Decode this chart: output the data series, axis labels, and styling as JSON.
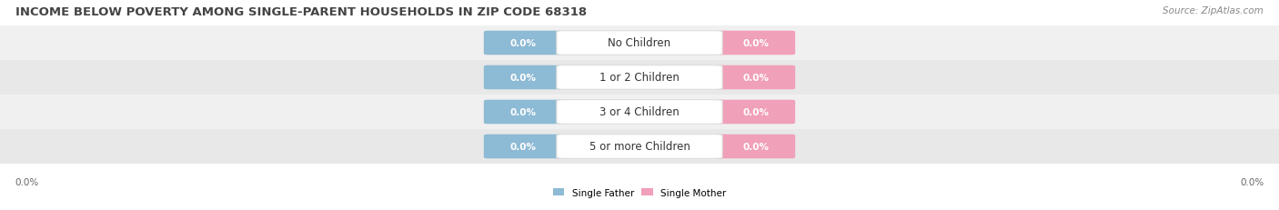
{
  "title": "INCOME BELOW POVERTY AMONG SINGLE-PARENT HOUSEHOLDS IN ZIP CODE 68318",
  "source": "Source: ZipAtlas.com",
  "categories": [
    "No Children",
    "1 or 2 Children",
    "3 or 4 Children",
    "5 or more Children"
  ],
  "father_values": [
    0.0,
    0.0,
    0.0,
    0.0
  ],
  "mother_values": [
    0.0,
    0.0,
    0.0,
    0.0
  ],
  "father_color": "#8dbad4",
  "mother_color": "#f0a0b8",
  "row_bg_colors": [
    "#f0f0f0",
    "#e8e8e8",
    "#f0f0f0",
    "#e8e8e8"
  ],
  "title_fontsize": 9.5,
  "source_fontsize": 7.5,
  "label_fontsize": 7.5,
  "category_fontsize": 8.5,
  "value_fontsize": 7.5,
  "axis_label_left": "0.0%",
  "axis_label_right": "0.0%",
  "legend_father": "Single Father",
  "legend_mother": "Single Mother",
  "fig_width": 14.06,
  "fig_height": 2.32,
  "background_color": "#ffffff"
}
